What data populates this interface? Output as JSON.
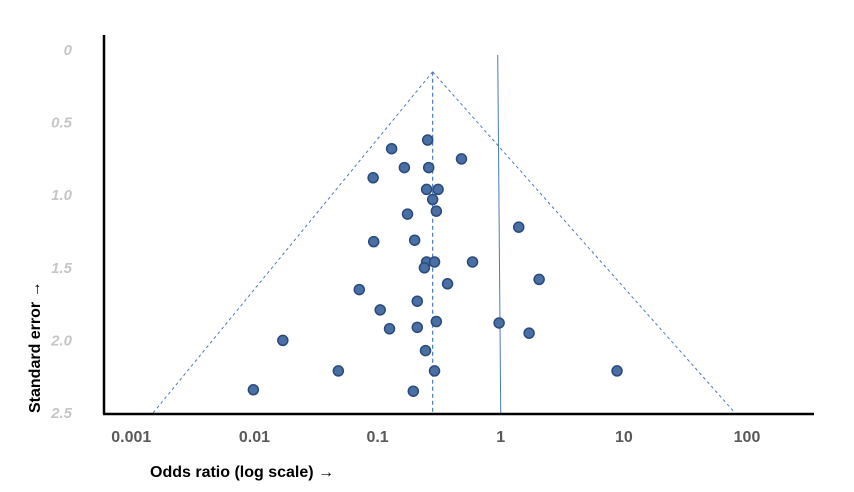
{
  "chart_data": {
    "type": "scatter",
    "title": "",
    "xlabel": "Odds ratio (log scale) →",
    "ylabel": "Standard error →",
    "x_scale": "log",
    "y_inverted": true,
    "xlim": [
      0.0006,
      350
    ],
    "ylim": [
      0,
      2.5
    ],
    "x_ticks": [
      {
        "value": 0.001,
        "label": "0.001"
      },
      {
        "value": 0.01,
        "label": "0.01"
      },
      {
        "value": 0.1,
        "label": "0.1"
      },
      {
        "value": 1,
        "label": "1"
      },
      {
        "value": 10,
        "label": "10"
      },
      {
        "value": 100,
        "label": "100"
      }
    ],
    "y_ticks": [
      {
        "value": 0,
        "label": "0"
      },
      {
        "value": 0.5,
        "label": "0.5"
      },
      {
        "value": 1.0,
        "label": "1.0"
      },
      {
        "value": 1.5,
        "label": "1.5"
      },
      {
        "value": 2.0,
        "label": "2.0"
      },
      {
        "value": 2.5,
        "label": "2.5"
      }
    ],
    "grid": false,
    "pooled_estimate": 0.28,
    "null_line": 1,
    "funnel": {
      "apex": [
        0.28,
        0.15
      ],
      "base_left": [
        0.0015,
        2.5
      ],
      "base_right": [
        80,
        2.5
      ]
    },
    "marker_color": "#4a6fa5",
    "marker_edge_color": "#2a4a7a",
    "line_color": "#4a7bc0",
    "points": [
      {
        "x": 0.255,
        "y": 0.62
      },
      {
        "x": 0.13,
        "y": 0.68
      },
      {
        "x": 0.48,
        "y": 0.75
      },
      {
        "x": 0.165,
        "y": 0.81
      },
      {
        "x": 0.26,
        "y": 0.81
      },
      {
        "x": 0.092,
        "y": 0.88
      },
      {
        "x": 0.25,
        "y": 0.96
      },
      {
        "x": 0.31,
        "y": 0.96
      },
      {
        "x": 0.28,
        "y": 1.03
      },
      {
        "x": 0.175,
        "y": 1.13
      },
      {
        "x": 0.3,
        "y": 1.11
      },
      {
        "x": 1.4,
        "y": 1.22
      },
      {
        "x": 0.093,
        "y": 1.32
      },
      {
        "x": 0.2,
        "y": 1.31
      },
      {
        "x": 0.25,
        "y": 1.46
      },
      {
        "x": 0.29,
        "y": 1.46
      },
      {
        "x": 0.59,
        "y": 1.46
      },
      {
        "x": 0.24,
        "y": 1.5
      },
      {
        "x": 2.05,
        "y": 1.58
      },
      {
        "x": 0.37,
        "y": 1.61
      },
      {
        "x": 0.071,
        "y": 1.65
      },
      {
        "x": 0.21,
        "y": 1.73
      },
      {
        "x": 0.105,
        "y": 1.79
      },
      {
        "x": 0.3,
        "y": 1.87
      },
      {
        "x": 0.97,
        "y": 1.88
      },
      {
        "x": 0.125,
        "y": 1.92
      },
      {
        "x": 0.21,
        "y": 1.91
      },
      {
        "x": 1.7,
        "y": 1.95
      },
      {
        "x": 0.017,
        "y": 2.0
      },
      {
        "x": 0.245,
        "y": 2.07
      },
      {
        "x": 0.048,
        "y": 2.21
      },
      {
        "x": 0.29,
        "y": 2.21
      },
      {
        "x": 8.8,
        "y": 2.21
      },
      {
        "x": 0.0098,
        "y": 2.34
      },
      {
        "x": 0.195,
        "y": 2.35
      }
    ]
  }
}
